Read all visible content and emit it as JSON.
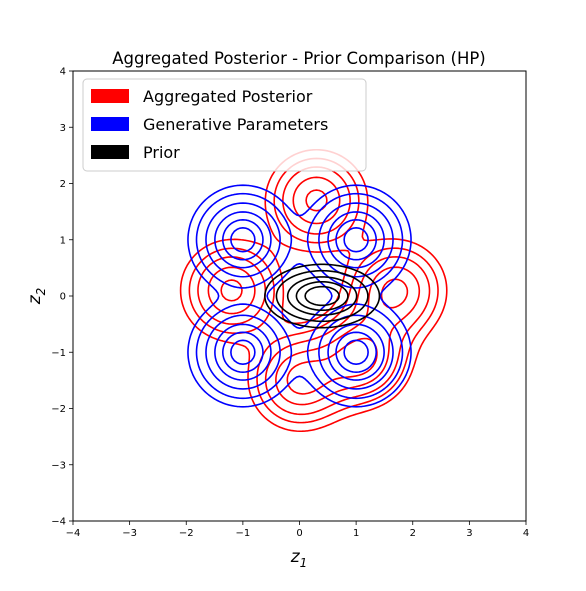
{
  "chart_data": {
    "type": "contour",
    "title": "Aggregated Posterior - Prior Comparison (HP)",
    "xlabel": "z",
    "xlabel_sub": "1",
    "ylabel": "z",
    "ylabel_sub": "2",
    "xlim": [
      -4,
      4
    ],
    "ylim": [
      -4,
      4
    ],
    "xticks": [
      -4,
      -3,
      -2,
      -1,
      0,
      1,
      2,
      3,
      4
    ],
    "yticks": [
      -4,
      -3,
      -2,
      -1,
      0,
      1,
      2,
      3,
      4
    ],
    "xtick_labels": [
      "−4",
      "−3",
      "−2",
      "−1",
      "0",
      "1",
      "2",
      "3",
      "4"
    ],
    "ytick_labels": [
      "−4",
      "−3",
      "−2",
      "−1",
      "0",
      "1",
      "2",
      "3",
      "4"
    ],
    "grid": false,
    "legend_position": "top-left",
    "series": [
      {
        "name": "Aggregated Posterior",
        "color": "#ff0000",
        "components": [
          [
            0.3,
            1.7
          ],
          [
            -1.2,
            0.1
          ],
          [
            0.0,
            -1.5
          ],
          [
            1.7,
            0.1
          ],
          [
            1.1,
            -1.1
          ]
        ],
        "spread": 0.5,
        "levels": [
          0.18,
          0.3,
          0.45,
          0.65,
          0.85
        ]
      },
      {
        "name": "Generative Parameters",
        "color": "#0000ff",
        "components": [
          [
            -1.0,
            1.0
          ],
          [
            1.0,
            1.0
          ],
          [
            -1.0,
            -1.0
          ],
          [
            1.0,
            -1.0
          ]
        ],
        "spread": 0.42,
        "levels": [
          0.07,
          0.15,
          0.3,
          0.5,
          0.7,
          0.88
        ]
      },
      {
        "name": "Prior",
        "color": "#000000",
        "center": [
          0.4,
          0.0
        ],
        "sigma": [
          0.45,
          0.25
        ],
        "levels": [
          0.08,
          0.2,
          0.4,
          0.6,
          0.8
        ]
      }
    ]
  }
}
